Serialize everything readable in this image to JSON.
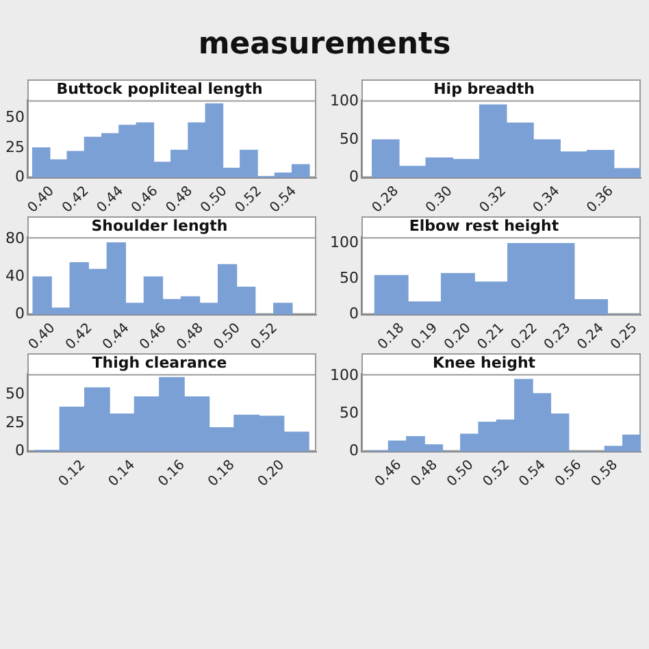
{
  "chart_data": [
    {
      "type": "other",
      "title": "measurements"
    },
    {
      "type": "histogram",
      "title": "Buttock popliteal length",
      "color": "#7ba0d6",
      "bins": [
        0.395,
        0.405,
        0.415,
        0.425,
        0.435,
        0.445,
        0.455,
        0.465,
        0.475,
        0.485,
        0.495,
        0.505,
        0.515,
        0.525,
        0.535,
        0.545,
        0.555
      ],
      "values": [
        25,
        15,
        22,
        34,
        37,
        44,
        46,
        13,
        23,
        46,
        62,
        8,
        23,
        1,
        4,
        11
      ],
      "xlim": [
        0.392,
        0.559
      ],
      "xticks": [
        {
          "value": 0.4,
          "label": "0.40"
        },
        {
          "value": 0.42,
          "label": "0.42"
        },
        {
          "value": 0.44,
          "label": "0.44"
        },
        {
          "value": 0.46,
          "label": "0.46"
        },
        {
          "value": 0.48,
          "label": "0.48"
        },
        {
          "value": 0.5,
          "label": "0.50"
        },
        {
          "value": 0.52,
          "label": "0.52"
        },
        {
          "value": 0.54,
          "label": "0.54"
        }
      ],
      "ylim": [
        0,
        65
      ],
      "yticks": [
        0,
        25,
        50
      ]
    },
    {
      "type": "histogram",
      "title": "Hip breadth",
      "color": "#7ba0d6",
      "bins": [
        0.275,
        0.285,
        0.295,
        0.305,
        0.315,
        0.325,
        0.335,
        0.345,
        0.355,
        0.365,
        0.375
      ],
      "values": [
        50,
        15,
        26,
        24,
        96,
        72,
        50,
        34,
        36,
        12
      ],
      "xlim": [
        0.271,
        0.375
      ],
      "xticks": [
        {
          "value": 0.28,
          "label": "0.28"
        },
        {
          "value": 0.3,
          "label": "0.30"
        },
        {
          "value": 0.32,
          "label": "0.32"
        },
        {
          "value": 0.34,
          "label": "0.34"
        },
        {
          "value": 0.36,
          "label": "0.36"
        }
      ],
      "ylim": [
        0,
        102
      ],
      "yticks": [
        0,
        50,
        100
      ]
    },
    {
      "type": "histogram",
      "title": "Shoulder length",
      "color": "#7ba0d6",
      "bins": [
        0.395,
        0.405,
        0.415,
        0.425,
        0.435,
        0.445,
        0.455,
        0.465,
        0.475,
        0.485,
        0.495,
        0.505,
        0.515,
        0.525,
        0.535
      ],
      "values": [
        40,
        7,
        55,
        48,
        76,
        12,
        40,
        16,
        19,
        12,
        53,
        29,
        0,
        12
      ],
      "xlim": [
        0.392,
        0.548
      ],
      "xticks": [
        {
          "value": 0.4,
          "label": "0.40"
        },
        {
          "value": 0.42,
          "label": "0.42"
        },
        {
          "value": 0.44,
          "label": "0.44"
        },
        {
          "value": 0.46,
          "label": "0.46"
        },
        {
          "value": 0.48,
          "label": "0.48"
        },
        {
          "value": 0.5,
          "label": "0.50"
        },
        {
          "value": 0.52,
          "label": "0.52"
        }
      ],
      "ylim": [
        0,
        82
      ],
      "yticks": [
        0,
        40,
        80
      ]
    },
    {
      "type": "histogram",
      "title": "Elbow rest height",
      "color": "#7ba0d6",
      "bins": [
        0.175,
        0.185,
        0.195,
        0.205,
        0.215,
        0.225,
        0.235,
        0.245,
        0.255
      ],
      "values": [
        55,
        18,
        58,
        46,
        100,
        100,
        21,
        0
      ],
      "xlim": [
        0.171,
        0.255
      ],
      "xticks": [
        {
          "value": 0.18,
          "label": "0.18"
        },
        {
          "value": 0.19,
          "label": "0.19"
        },
        {
          "value": 0.2,
          "label": "0.20"
        },
        {
          "value": 0.21,
          "label": "0.21"
        },
        {
          "value": 0.22,
          "label": "0.22"
        },
        {
          "value": 0.23,
          "label": "0.23"
        },
        {
          "value": 0.24,
          "label": "0.24"
        },
        {
          "value": 0.25,
          "label": "0.25"
        }
      ],
      "ylim": [
        0,
        109
      ],
      "yticks": [
        0,
        50,
        100
      ]
    },
    {
      "type": "histogram",
      "title": "Thigh clearance",
      "color": "#7ba0d6",
      "bins": [
        0.105,
        0.115,
        0.125,
        0.135,
        0.145,
        0.155,
        0.165,
        0.175,
        0.185,
        0.195,
        0.205,
        0.215
      ],
      "values": [
        1,
        39,
        56,
        33,
        48,
        65,
        48,
        21,
        32,
        31,
        17
      ],
      "xlim": [
        0.102,
        0.218
      ],
      "xticks": [
        {
          "value": 0.12,
          "label": "0.12"
        },
        {
          "value": 0.14,
          "label": "0.14"
        },
        {
          "value": 0.16,
          "label": "0.16"
        },
        {
          "value": 0.18,
          "label": "0.18"
        },
        {
          "value": 0.2,
          "label": "0.20"
        }
      ],
      "ylim": [
        0,
        68
      ],
      "yticks": [
        0,
        25,
        50
      ]
    },
    {
      "type": "histogram",
      "title": "Knee height",
      "color": "#7ba0d6",
      "bins": [
        0.45,
        0.46,
        0.47,
        0.48,
        0.49,
        0.5,
        0.51,
        0.52,
        0.53,
        0.54,
        0.55,
        0.56,
        0.57,
        0.58,
        0.59,
        0.6
      ],
      "values": [
        1,
        14,
        20,
        9,
        0,
        23,
        39,
        42,
        96,
        77,
        50,
        0,
        0,
        7,
        22
      ],
      "xlim": [
        0.445,
        0.6
      ],
      "xticks": [
        {
          "value": 0.46,
          "label": "0.46"
        },
        {
          "value": 0.48,
          "label": "0.48"
        },
        {
          "value": 0.5,
          "label": "0.50"
        },
        {
          "value": 0.52,
          "label": "0.52"
        },
        {
          "value": 0.54,
          "label": "0.54"
        },
        {
          "value": 0.56,
          "label": "0.56"
        },
        {
          "value": 0.58,
          "label": "0.58"
        }
      ],
      "ylim": [
        0,
        103
      ],
      "yticks": [
        0,
        50,
        100
      ]
    }
  ]
}
